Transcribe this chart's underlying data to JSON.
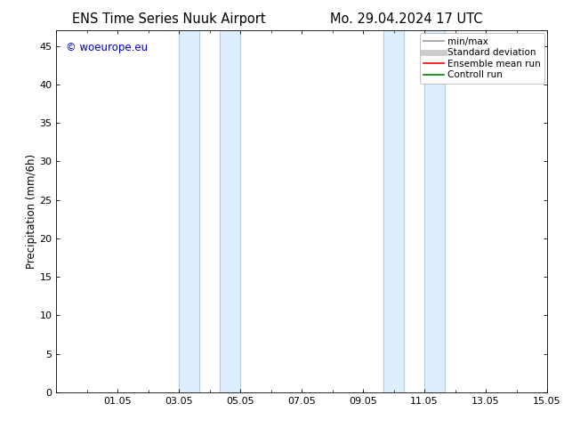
{
  "title_left": "ENS Time Series Nuuk Airport",
  "title_right": "Mo. 29.04.2024 17 UTC",
  "ylabel": "Precipitation (mm/6h)",
  "background_color": "#ffffff",
  "plot_bg_color": "#ffffff",
  "ylim": [
    0,
    47
  ],
  "yticks": [
    0,
    5,
    10,
    15,
    20,
    25,
    30,
    35,
    40,
    45
  ],
  "xlim": [
    0.0,
    16.0
  ],
  "x_tick_labels": [
    "01.05",
    "03.05",
    "05.05",
    "07.05",
    "09.05",
    "11.05",
    "13.05",
    "15.05"
  ],
  "x_tick_positions": [
    2.0,
    4.0,
    6.0,
    8.0,
    10.0,
    12.0,
    14.0,
    16.0
  ],
  "shaded_bands": [
    {
      "x_start": 4.0,
      "x_end": 4.67,
      "color": "#ddeeff"
    },
    {
      "x_start": 5.33,
      "x_end": 6.0,
      "color": "#ddeeff"
    },
    {
      "x_start": 10.67,
      "x_end": 11.33,
      "color": "#ddeeff"
    },
    {
      "x_start": 12.0,
      "x_end": 12.67,
      "color": "#ddeeff"
    }
  ],
  "blue_vlines": [
    4.0,
    4.67,
    5.33,
    6.0,
    10.67,
    11.33,
    12.0,
    12.67
  ],
  "vline_color": "#b0ccdd",
  "watermark_text": "© woeurope.eu",
  "watermark_color": "#0000cc",
  "legend_items": [
    {
      "label": "min/max",
      "color": "#999999",
      "lw": 1.2,
      "style": "solid"
    },
    {
      "label": "Standard deviation",
      "color": "#cccccc",
      "lw": 5,
      "style": "solid"
    },
    {
      "label": "Ensemble mean run",
      "color": "#ff0000",
      "lw": 1.2,
      "style": "solid"
    },
    {
      "label": "Controll run",
      "color": "#008000",
      "lw": 1.2,
      "style": "solid"
    }
  ],
  "title_fontsize": 10.5,
  "axis_fontsize": 8.5,
  "tick_fontsize": 8,
  "watermark_fontsize": 8.5,
  "legend_fontsize": 7.5
}
